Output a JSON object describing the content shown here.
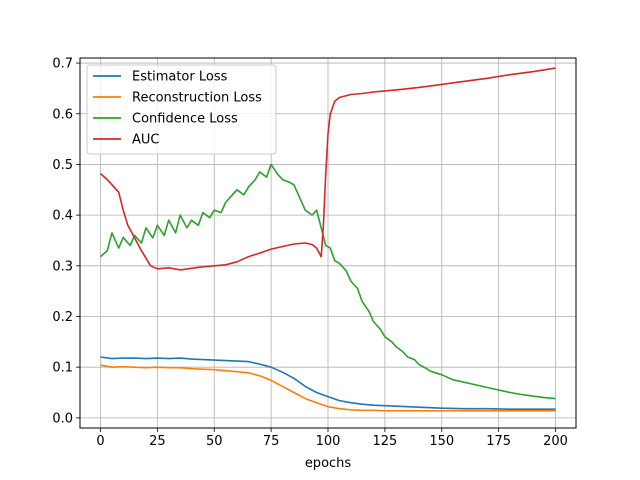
{
  "chart_data": {
    "type": "line",
    "title": "",
    "xlabel": "epochs",
    "ylabel": "",
    "xlim": [
      -9,
      209
    ],
    "ylim": [
      -0.02,
      0.71
    ],
    "xticks": [
      0,
      25,
      50,
      75,
      100,
      125,
      150,
      175,
      200
    ],
    "yticks": [
      0.0,
      0.1,
      0.2,
      0.3,
      0.4,
      0.5,
      0.6,
      0.7
    ],
    "xtick_labels": [
      "0",
      "25",
      "50",
      "75",
      "100",
      "125",
      "150",
      "175",
      "200"
    ],
    "ytick_labels": [
      "0.0",
      "0.1",
      "0.2",
      "0.3",
      "0.4",
      "0.5",
      "0.6",
      "0.7"
    ],
    "grid": true,
    "legend_position": "top-left",
    "series": [
      {
        "name": "Estimator Loss",
        "color": "#1f77b4",
        "x": [
          0,
          5,
          10,
          15,
          20,
          25,
          30,
          35,
          40,
          45,
          50,
          55,
          60,
          65,
          70,
          75,
          80,
          85,
          90,
          95,
          100,
          105,
          110,
          115,
          120,
          125,
          130,
          140,
          150,
          160,
          170,
          180,
          190,
          200
        ],
        "y": [
          0.12,
          0.117,
          0.118,
          0.118,
          0.117,
          0.118,
          0.117,
          0.118,
          0.116,
          0.115,
          0.114,
          0.113,
          0.112,
          0.111,
          0.106,
          0.1,
          0.09,
          0.078,
          0.062,
          0.05,
          0.042,
          0.034,
          0.03,
          0.027,
          0.025,
          0.024,
          0.023,
          0.021,
          0.019,
          0.018,
          0.018,
          0.017,
          0.017,
          0.017
        ]
      },
      {
        "name": "Reconstruction Loss",
        "color": "#ff7f0e",
        "x": [
          0,
          5,
          10,
          15,
          20,
          25,
          30,
          35,
          40,
          45,
          50,
          55,
          60,
          65,
          70,
          75,
          80,
          85,
          90,
          95,
          100,
          105,
          110,
          115,
          120,
          125,
          130,
          140,
          150,
          160,
          170,
          180,
          190,
          200
        ],
        "y": [
          0.104,
          0.1,
          0.101,
          0.1,
          0.099,
          0.1,
          0.099,
          0.099,
          0.097,
          0.096,
          0.095,
          0.093,
          0.091,
          0.089,
          0.083,
          0.074,
          0.062,
          0.05,
          0.038,
          0.03,
          0.022,
          0.018,
          0.016,
          0.015,
          0.015,
          0.014,
          0.014,
          0.014,
          0.014,
          0.014,
          0.014,
          0.014,
          0.014,
          0.014
        ]
      },
      {
        "name": "Confidence Loss",
        "color": "#2ca02c",
        "x": [
          0,
          3,
          5,
          8,
          10,
          13,
          15,
          18,
          20,
          23,
          25,
          28,
          30,
          33,
          35,
          38,
          40,
          43,
          45,
          48,
          50,
          53,
          55,
          58,
          60,
          63,
          65,
          68,
          70,
          73,
          75,
          78,
          80,
          83,
          85,
          88,
          90,
          93,
          95,
          97,
          99,
          101,
          103,
          105,
          108,
          110,
          113,
          115,
          118,
          120,
          123,
          125,
          128,
          130,
          133,
          135,
          138,
          140,
          143,
          145,
          148,
          150,
          155,
          160,
          165,
          170,
          175,
          180,
          185,
          190,
          195,
          200
        ],
        "y": [
          0.318,
          0.33,
          0.365,
          0.335,
          0.356,
          0.34,
          0.36,
          0.345,
          0.375,
          0.355,
          0.38,
          0.36,
          0.39,
          0.365,
          0.4,
          0.375,
          0.39,
          0.38,
          0.405,
          0.395,
          0.41,
          0.405,
          0.425,
          0.44,
          0.45,
          0.44,
          0.455,
          0.47,
          0.485,
          0.475,
          0.5,
          0.48,
          0.47,
          0.465,
          0.46,
          0.43,
          0.41,
          0.4,
          0.41,
          0.375,
          0.34,
          0.335,
          0.31,
          0.305,
          0.29,
          0.27,
          0.255,
          0.23,
          0.21,
          0.19,
          0.175,
          0.16,
          0.15,
          0.14,
          0.13,
          0.12,
          0.115,
          0.105,
          0.098,
          0.092,
          0.088,
          0.085,
          0.075,
          0.07,
          0.065,
          0.06,
          0.055,
          0.05,
          0.046,
          0.043,
          0.04,
          0.038
        ]
      },
      {
        "name": "AUC",
        "color": "#d62728",
        "x": [
          0,
          3,
          5,
          8,
          10,
          12,
          15,
          18,
          20,
          22,
          25,
          30,
          35,
          40,
          45,
          50,
          55,
          60,
          65,
          70,
          75,
          80,
          85,
          90,
          93,
          95,
          97,
          98,
          99,
          100,
          101,
          103,
          105,
          110,
          115,
          120,
          130,
          140,
          150,
          160,
          170,
          180,
          190,
          200
        ],
        "y": [
          0.482,
          0.47,
          0.46,
          0.445,
          0.41,
          0.38,
          0.355,
          0.33,
          0.315,
          0.3,
          0.294,
          0.296,
          0.292,
          0.295,
          0.298,
          0.3,
          0.302,
          0.308,
          0.318,
          0.325,
          0.333,
          0.338,
          0.343,
          0.345,
          0.342,
          0.335,
          0.318,
          0.38,
          0.48,
          0.56,
          0.6,
          0.625,
          0.632,
          0.638,
          0.64,
          0.643,
          0.647,
          0.652,
          0.658,
          0.664,
          0.67,
          0.677,
          0.683,
          0.69
        ]
      }
    ]
  }
}
